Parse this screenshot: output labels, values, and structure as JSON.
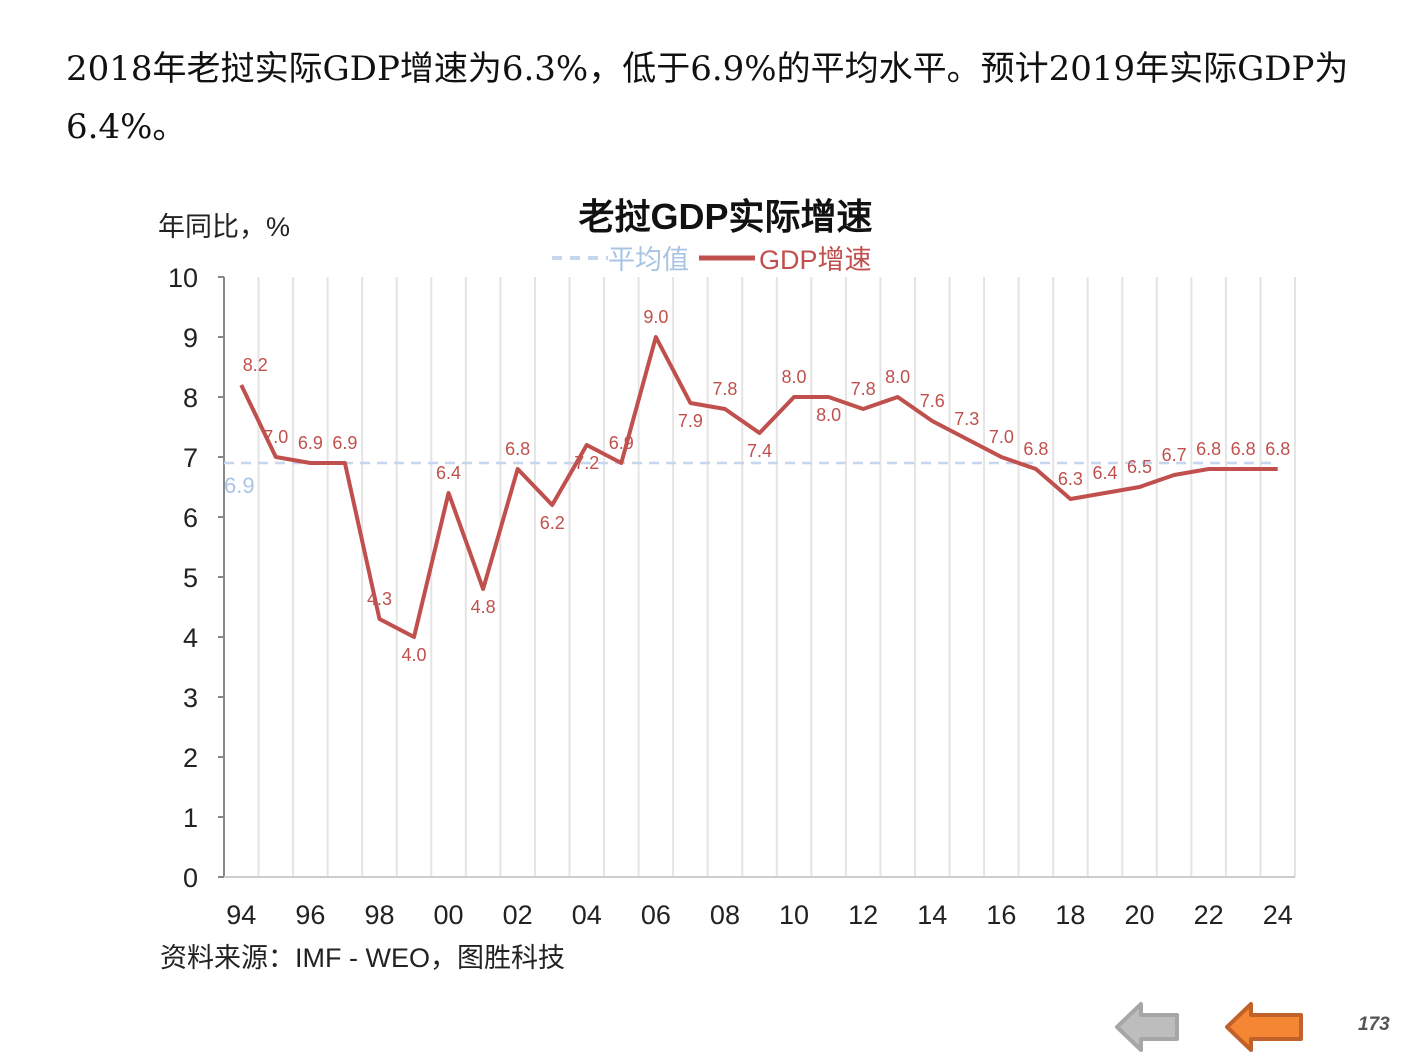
{
  "headline": "2018年老挝实际GDP增速为6.3%，低于6.9%的平均水平。预计2019年实际GDP为6.4%。",
  "source": "资料来源：IMF - WEO，图胜科技",
  "page_number": "173",
  "nav": {
    "prev_icon": "arrow-left-gray",
    "next_icon": "arrow-left-orange"
  },
  "colors": {
    "gdp": "#C0504D",
    "avg": "#C6D6EC",
    "avg_label": "#A9C4E3",
    "grid": "#E4E4E4"
  },
  "chart_data": {
    "type": "line",
    "title": "老挝GDP实际增速",
    "ylabel": "年同比，%",
    "xlabel": "",
    "ylim": [
      0,
      10
    ],
    "yticks": [
      "0",
      "1",
      "2",
      "3",
      "4",
      "5",
      "6",
      "7",
      "8",
      "9",
      "10"
    ],
    "categories": [
      "94",
      "95",
      "96",
      "97",
      "98",
      "99",
      "00",
      "01",
      "02",
      "03",
      "04",
      "05",
      "06",
      "07",
      "08",
      "09",
      "10",
      "11",
      "12",
      "13",
      "14",
      "15",
      "16",
      "17",
      "18",
      "19",
      "20",
      "21",
      "22",
      "23",
      "24"
    ],
    "xtick_labels": [
      "94",
      "96",
      "98",
      "00",
      "02",
      "04",
      "06",
      "08",
      "10",
      "12",
      "14",
      "16",
      "18",
      "20",
      "22",
      "24"
    ],
    "legend": [
      "平均值",
      "GDP增速"
    ],
    "legend_position": "top-center",
    "series": [
      {
        "name": "GDP增速",
        "values": [
          8.2,
          7.0,
          6.9,
          6.9,
          4.3,
          4.0,
          6.4,
          4.8,
          6.8,
          6.2,
          7.2,
          6.9,
          9.0,
          7.9,
          7.8,
          7.4,
          8.0,
          8.0,
          7.8,
          8.0,
          7.6,
          7.3,
          7.0,
          6.8,
          6.3,
          6.4,
          6.5,
          6.7,
          6.8,
          6.8,
          6.8
        ],
        "labels": [
          "8.2",
          "7.0",
          "6.9",
          "6.9",
          "4.3",
          "4.0",
          "6.4",
          "4.8",
          "6.8",
          "6.2",
          "7.2",
          "6.9",
          "9.0",
          "7.9",
          "7.8",
          "7.4",
          "8.0",
          "8.0",
          "7.8",
          "8.0",
          "7.6",
          "7.3",
          "7.0",
          "6.8",
          "6.3",
          "6.4",
          "6.5",
          "6.7",
          "6.8",
          "6.8",
          "6.8"
        ]
      },
      {
        "name": "平均值",
        "value": 6.9,
        "label": "6.9"
      }
    ]
  }
}
